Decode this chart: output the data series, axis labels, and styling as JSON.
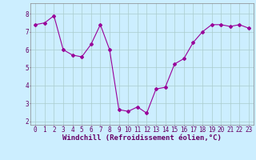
{
  "x": [
    0,
    1,
    2,
    3,
    4,
    5,
    6,
    7,
    8,
    9,
    10,
    11,
    12,
    13,
    14,
    15,
    16,
    17,
    18,
    19,
    20,
    21,
    22,
    23
  ],
  "y": [
    7.4,
    7.5,
    7.9,
    6.0,
    5.7,
    5.6,
    6.3,
    7.4,
    6.0,
    2.65,
    2.55,
    2.8,
    2.45,
    3.8,
    3.9,
    5.2,
    5.5,
    6.4,
    7.0,
    7.4,
    7.4,
    7.3,
    7.4,
    7.2
  ],
  "line_color": "#990099",
  "marker": "D",
  "marker_size": 2.0,
  "bg_color": "#cceeff",
  "grid_color": "#aacccc",
  "xlabel": "Windchill (Refroidissement éolien,°C)",
  "xlim": [
    -0.5,
    23.5
  ],
  "ylim": [
    1.8,
    8.6
  ],
  "yticks": [
    2,
    3,
    4,
    5,
    6,
    7,
    8
  ],
  "xticks": [
    0,
    1,
    2,
    3,
    4,
    5,
    6,
    7,
    8,
    9,
    10,
    11,
    12,
    13,
    14,
    15,
    16,
    17,
    18,
    19,
    20,
    21,
    22,
    23
  ],
  "label_fontsize": 6.5,
  "tick_fontsize": 5.5
}
